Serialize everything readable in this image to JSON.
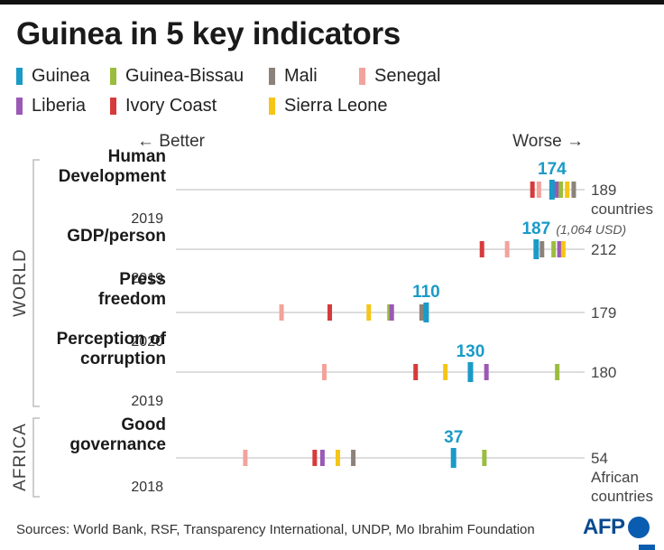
{
  "title": "Guinea in 5 key indicators",
  "legend": [
    {
      "name": "Guinea",
      "color": "#1a9bc7"
    },
    {
      "name": "Guinea-Bissau",
      "color": "#9bbd3e"
    },
    {
      "name": "Mali",
      "color": "#8c8279"
    },
    {
      "name": "Senegal",
      "color": "#f2a39c"
    },
    {
      "name": "Liberia",
      "color": "#9b59b6"
    },
    {
      "name": "Ivory Coast",
      "color": "#d63b3b"
    },
    {
      "name": "Sierra Leone",
      "color": "#f5c518"
    }
  ],
  "direction": {
    "better": "← Better",
    "worse": "Worse →"
  },
  "groups": [
    {
      "label": "World",
      "rows": [
        0,
        1,
        2,
        3
      ]
    },
    {
      "label": "Africa",
      "rows": [
        4
      ]
    }
  ],
  "chart_data": {
    "type": "strip",
    "indicators": [
      {
        "label_lines": [
          "Human",
          "Development"
        ],
        "year": "2019",
        "max": 189,
        "max_label_lines": [
          "189",
          "countries"
        ],
        "highlight": "Guinea",
        "highlight_label": "174",
        "highlight_note": "",
        "values": {
          "Guinea": 174,
          "Guinea-Bissau": 178,
          "Mali": 184,
          "Senegal": 168,
          "Liberia": 176,
          "Ivory Coast": 165,
          "Sierra Leone": 181
        }
      },
      {
        "label_lines": [
          "GDP/person"
        ],
        "year": "2019",
        "max": 212,
        "max_label_lines": [
          "212"
        ],
        "highlight": "Guinea",
        "highlight_label": "187",
        "highlight_note": "(1,064 USD)",
        "values": {
          "Guinea": 187,
          "Guinea-Bissau": 196,
          "Mali": 190,
          "Senegal": 172,
          "Liberia": 199,
          "Ivory Coast": 159,
          "Sierra Leone": 201
        }
      },
      {
        "label_lines": [
          "Press",
          "freedom"
        ],
        "year": "2020",
        "max": 179,
        "max_label_lines": [
          "179"
        ],
        "highlight": "Guinea",
        "highlight_label": "110",
        "highlight_note": "",
        "values": {
          "Guinea": 110,
          "Guinea-Bissau": 94,
          "Mali": 108,
          "Senegal": 47,
          "Liberia": 95,
          "Ivory Coast": 68,
          "Sierra Leone": 85
        }
      },
      {
        "label_lines": [
          "Perception of",
          "corruption"
        ],
        "year": "2019",
        "max": 180,
        "max_label_lines": [
          "180"
        ],
        "highlight": "Guinea",
        "highlight_label": "130",
        "highlight_note": "",
        "values": {
          "Guinea": 130,
          "Guinea-Bissau": 168,
          "Mali": 130,
          "Senegal": 66,
          "Liberia": 137,
          "Ivory Coast": 106,
          "Sierra Leone": 119
        }
      },
      {
        "label_lines": [
          "Good",
          "governance"
        ],
        "year": "2018",
        "max": 54,
        "max_label_lines": [
          "54",
          "African",
          "countries"
        ],
        "highlight": "Guinea",
        "highlight_label": "37",
        "highlight_note": "",
        "values": {
          "Guinea": 37,
          "Guinea-Bissau": 41,
          "Mali": 24,
          "Senegal": 10,
          "Liberia": 20,
          "Ivory Coast": 19,
          "Sierra Leone": 22
        }
      }
    ]
  },
  "sources": "Sources: World Bank, RSF, Transparency International, UNDP, Mo Ibrahim Foundation",
  "logo": "AFP"
}
